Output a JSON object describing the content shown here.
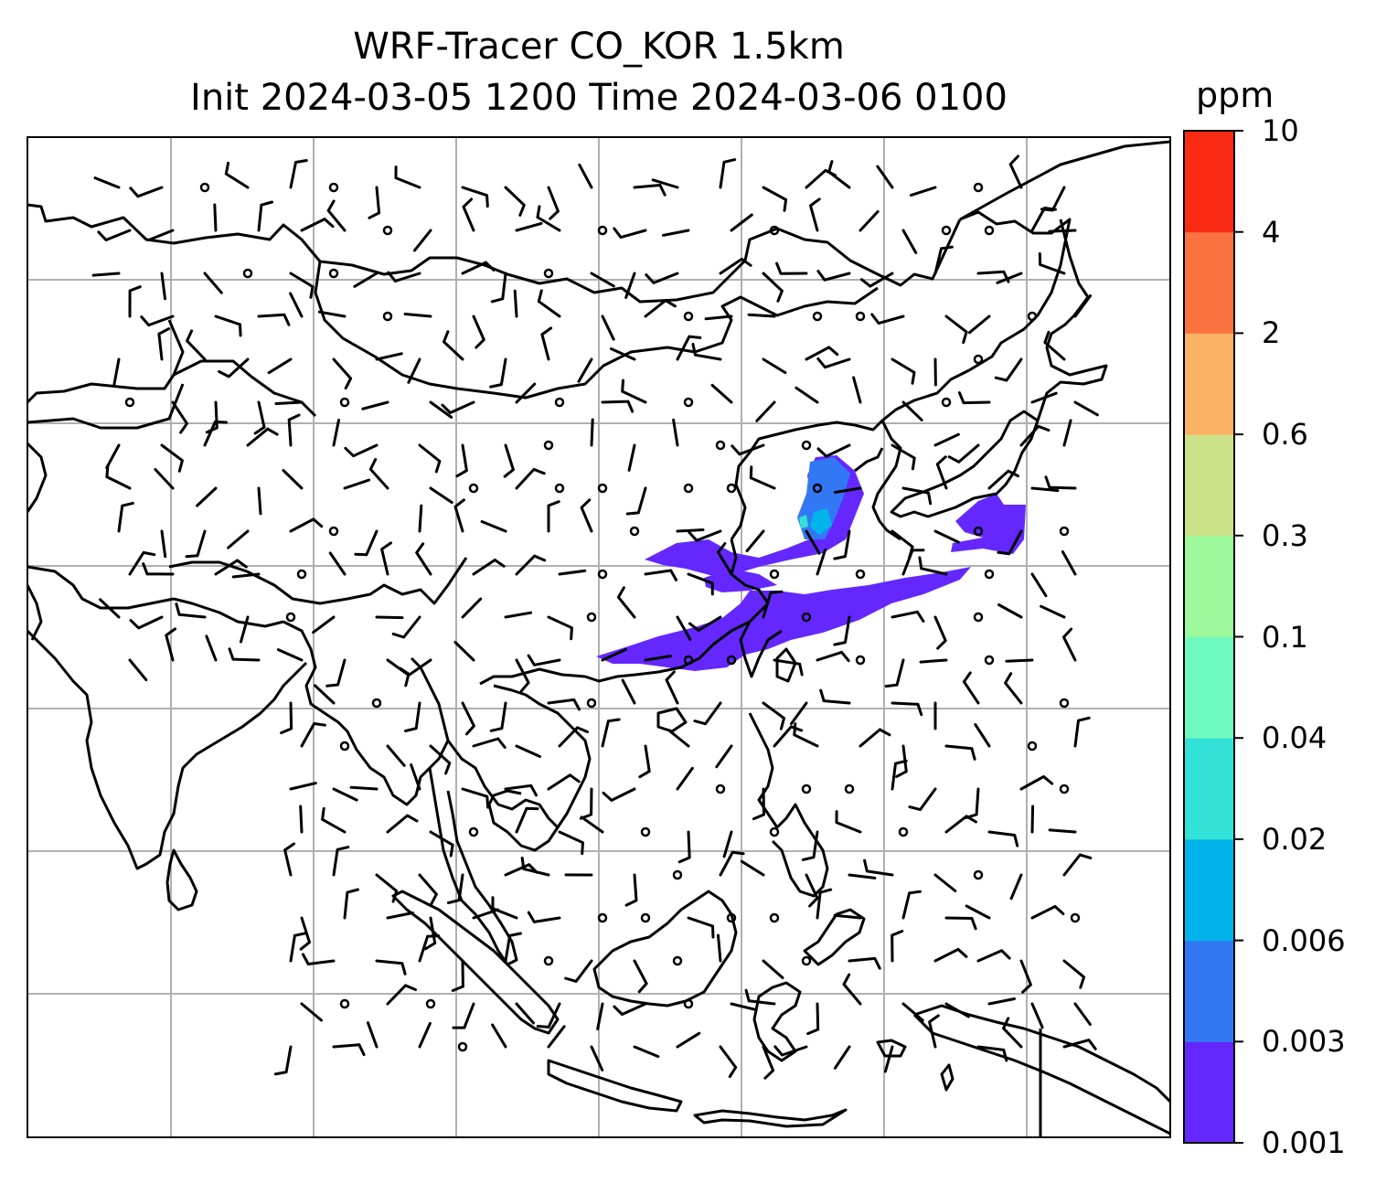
{
  "title": {
    "line1": "WRF-Tracer CO_KOR 1.5km",
    "line2": "Init 2024-03-05 1200 Time 2024-03-06 0100"
  },
  "colorbar": {
    "unit": "ppm",
    "levels": [
      "0.001",
      "0.003",
      "0.006",
      "0.02",
      "0.04",
      "0.1",
      "0.3",
      "0.6",
      "2",
      "4",
      "10"
    ],
    "colors": [
      "#6428ff",
      "#3278f5",
      "#00b4eb",
      "#32e1d7",
      "#6efabe",
      "#9bf99b",
      "#cce289",
      "#fbb166",
      "#fb7241",
      "#fb2a14"
    ]
  },
  "plume": {
    "layers": [
      {
        "level": "0.001",
        "color": "#6428ff"
      },
      {
        "level": "0.003",
        "color": "#3278f5"
      },
      {
        "level": "0.006",
        "color": "#00b4eb"
      },
      {
        "level": "0.02",
        "color": "#32e1d7"
      }
    ]
  },
  "wind_barbs": {
    "description_symbol": "wind-barb-icon",
    "calm_symbol": "calm-circle-icon"
  },
  "style": {
    "grid_color": "#b0b0b0",
    "coast_color": "#000000"
  }
}
